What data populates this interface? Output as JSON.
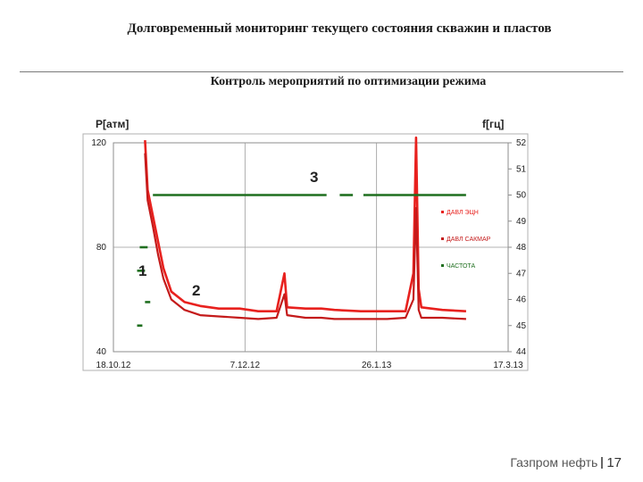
{
  "slide": {
    "title": "Долговременный мониторинг текущего состояния скважин и пластов",
    "subtitle": "Контроль мероприятий по оптимизации режима"
  },
  "footer": {
    "brand": "Газпром нефть",
    "page_number": "17"
  },
  "chart_data": {
    "type": "line",
    "title": "",
    "ylabel": "P[атм]",
    "y2label": "f[гц]",
    "x_ticks": [
      "18.10.12",
      "7.12.12",
      "26.1.13",
      "17.3.13"
    ],
    "xlim": [
      "2012-10-18",
      "2013-03-17"
    ],
    "ylim": [
      40,
      120
    ],
    "y_ticks": [
      40,
      80,
      120
    ],
    "y2lim": [
      44,
      52
    ],
    "y2_ticks": [
      44,
      45,
      46,
      47,
      48,
      49,
      50,
      51,
      52
    ],
    "grid": true,
    "legend": "right",
    "annotations": [
      "1",
      "2",
      "3"
    ],
    "colors": {
      "pressure1": "#e8211e",
      "pressure2": "#c41a1a",
      "frequency": "#1f6f1f"
    },
    "series": [
      {
        "name": "ДАВЛ ЭЦН",
        "axis": "left",
        "points": [
          [
            "2012-10-30",
            121
          ],
          [
            "2012-10-31",
            102
          ],
          [
            "2012-11-02",
            92
          ],
          [
            "2012-11-04",
            82
          ],
          [
            "2012-11-06",
            72
          ],
          [
            "2012-11-09",
            63
          ],
          [
            "2012-11-14",
            59
          ],
          [
            "2012-11-20",
            57.5
          ],
          [
            "2012-11-27",
            56.5
          ],
          [
            "2012-12-05",
            56.5
          ],
          [
            "2012-12-12",
            55.5
          ],
          [
            "2012-12-19",
            55.5
          ],
          [
            "2012-12-22",
            70
          ],
          [
            "2012-12-23",
            57
          ],
          [
            "2012-12-30",
            56.5
          ],
          [
            "2013-01-05",
            56.5
          ],
          [
            "2013-01-10",
            56
          ],
          [
            "2013-01-20",
            55.5
          ],
          [
            "2013-01-30",
            55.5
          ],
          [
            "2013-02-06",
            55.5
          ],
          [
            "2013-02-09",
            70
          ],
          [
            "2013-02-10",
            122
          ],
          [
            "2013-02-11",
            64
          ],
          [
            "2013-02-12",
            57
          ],
          [
            "2013-02-20",
            56
          ],
          [
            "2013-03-01",
            55.5
          ]
        ]
      },
      {
        "name": "ДАВЛ САКМАР",
        "axis": "left",
        "points": [
          [
            "2012-10-30",
            116
          ],
          [
            "2012-10-31",
            98
          ],
          [
            "2012-11-02",
            88
          ],
          [
            "2012-11-04",
            77
          ],
          [
            "2012-11-06",
            68
          ],
          [
            "2012-11-09",
            60
          ],
          [
            "2012-11-14",
            56
          ],
          [
            "2012-11-20",
            54
          ],
          [
            "2012-11-27",
            53.5
          ],
          [
            "2012-12-05",
            53
          ],
          [
            "2012-12-12",
            52.5
          ],
          [
            "2012-12-19",
            53
          ],
          [
            "2012-12-22",
            62
          ],
          [
            "2012-12-23",
            54
          ],
          [
            "2012-12-30",
            53
          ],
          [
            "2013-01-05",
            53
          ],
          [
            "2013-01-10",
            52.5
          ],
          [
            "2013-01-20",
            52.5
          ],
          [
            "2013-01-30",
            52.5
          ],
          [
            "2013-02-06",
            53
          ],
          [
            "2013-02-09",
            60
          ],
          [
            "2013-02-10",
            95
          ],
          [
            "2013-02-11",
            56
          ],
          [
            "2013-02-12",
            53
          ],
          [
            "2013-02-20",
            53
          ],
          [
            "2013-03-01",
            52.5
          ]
        ]
      },
      {
        "name": "ЧАСТОТА",
        "axis": "right",
        "segments": [
          [
            [
              "2012-10-27",
              47.1
            ],
            [
              "2012-10-30",
              47.1
            ]
          ],
          [
            [
              "2012-10-30",
              45.9
            ],
            [
              "2012-11-01",
              45.9
            ]
          ],
          [
            [
              "2012-10-27",
              45.0
            ],
            [
              "2012-10-29",
              45.0
            ]
          ],
          [
            [
              "2012-10-28",
              48.0
            ],
            [
              "2012-10-31",
              48.0
            ]
          ],
          [
            [
              "2012-11-02",
              50.0
            ],
            [
              "2013-01-07",
              50.0
            ]
          ],
          [
            [
              "2013-01-12",
              50.0
            ],
            [
              "2013-01-17",
              50.0
            ]
          ],
          [
            [
              "2013-01-21",
              50.0
            ],
            [
              "2013-03-01",
              50.0
            ]
          ]
        ]
      }
    ]
  }
}
